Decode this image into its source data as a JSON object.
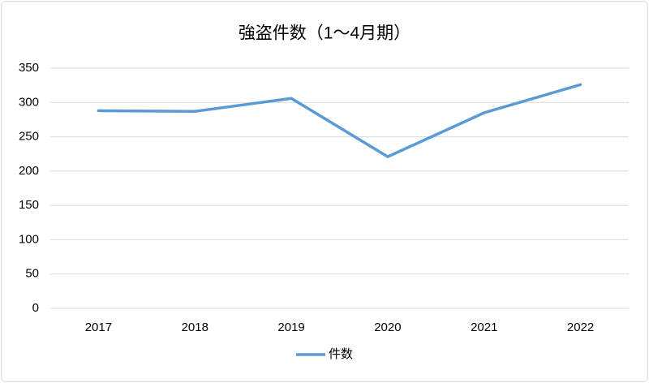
{
  "chart_data": {
    "type": "line",
    "title": "強盗件数（1～4月期）",
    "categories": [
      "2017",
      "2018",
      "2019",
      "2020",
      "2021",
      "2022"
    ],
    "series": [
      {
        "name": "件数",
        "color": "#5b9bd5",
        "values": [
          288,
          287,
          306,
          221,
          285,
          326
        ]
      }
    ],
    "ylim": [
      0,
      350
    ],
    "yticks": [
      0,
      50,
      100,
      150,
      200,
      250,
      300,
      350
    ],
    "grid": true,
    "legend": "bottom"
  }
}
